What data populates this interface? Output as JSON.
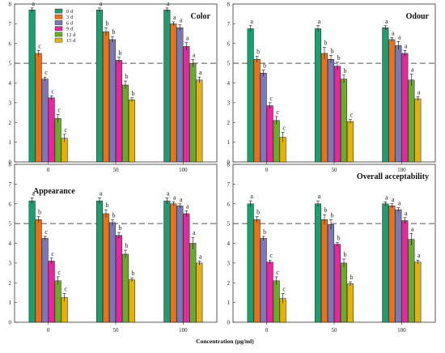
{
  "chart_data": {
    "type": "bar",
    "xlabel": "Concentration (μg/ml)",
    "categories": [
      "0",
      "50",
      "100"
    ],
    "legend": [
      "0 d",
      "3 d",
      "6 d",
      "9 d",
      "12 d",
      "15 d"
    ],
    "legend_placement": "top-left of first panel",
    "ylim": [
      0,
      8
    ],
    "yticks": [
      "0",
      "1",
      "2",
      "3",
      "4",
      "5",
      "6",
      "7",
      "8"
    ],
    "reference_line": 5,
    "colors": [
      "#1e9e70",
      "#e8721c",
      "#7a78b8",
      "#e8289a",
      "#6aab2c",
      "#e3b00c"
    ],
    "panels": [
      {
        "title": "Color",
        "title_position": "top-right",
        "values": [
          [
            7.7,
            5.5,
            4.2,
            3.25,
            2.2,
            1.2
          ],
          [
            7.7,
            6.6,
            6.2,
            5.15,
            3.9,
            3.15
          ],
          [
            7.7,
            7.0,
            6.8,
            5.85,
            5.0,
            4.15
          ]
        ],
        "errors": [
          [
            0.1,
            0.15,
            0.1,
            0.1,
            0.2,
            0.2
          ],
          [
            0.1,
            0.2,
            0.15,
            0.15,
            0.2,
            0.1
          ],
          [
            0.1,
            0.1,
            0.15,
            0.2,
            0.2,
            0.15
          ]
        ],
        "labels": [
          [
            "a",
            "c",
            "c",
            "c",
            "c",
            "c"
          ],
          [
            "a",
            "b",
            "b",
            "b",
            "b",
            "b"
          ],
          [
            "a",
            "a",
            "a",
            "a",
            "a",
            "a"
          ]
        ]
      },
      {
        "title": "Odour",
        "title_position": "top-right",
        "values": [
          [
            6.75,
            5.2,
            4.5,
            2.85,
            2.1,
            1.25
          ],
          [
            6.75,
            5.5,
            5.2,
            4.85,
            4.2,
            2.05
          ],
          [
            6.8,
            6.2,
            5.9,
            5.5,
            4.15,
            3.2
          ]
        ],
        "errors": [
          [
            0.15,
            0.15,
            0.15,
            0.15,
            0.2,
            0.25
          ],
          [
            0.15,
            0.3,
            0.2,
            0.2,
            0.2,
            0.1
          ],
          [
            0.1,
            0.1,
            0.2,
            0.15,
            0.3,
            0.1
          ]
        ],
        "labels": [
          [
            "a",
            "b",
            "b",
            "c",
            "c",
            "c"
          ],
          [
            "a",
            "b",
            "b",
            "b",
            "b",
            "c"
          ],
          [
            "a",
            "a",
            "a",
            "a",
            "a",
            "a"
          ]
        ]
      },
      {
        "title": "Appearance",
        "title_position": "middle-left",
        "values": [
          [
            6.15,
            5.2,
            4.25,
            3.1,
            2.1,
            1.25
          ],
          [
            6.15,
            5.5,
            5.05,
            4.4,
            3.45,
            2.15
          ],
          [
            6.15,
            6.0,
            5.9,
            5.5,
            4.0,
            3.0
          ]
        ],
        "errors": [
          [
            0.15,
            0.15,
            0.1,
            0.15,
            0.2,
            0.2
          ],
          [
            0.15,
            0.2,
            0.15,
            0.15,
            0.2,
            0.1
          ],
          [
            0.15,
            0.1,
            0.1,
            0.15,
            0.3,
            0.1
          ]
        ],
        "labels": [
          [
            "a",
            "b",
            "c",
            "c",
            "c",
            "c"
          ],
          [
            "a",
            "b",
            "b",
            "b",
            "b",
            "b"
          ],
          [
            "a",
            "a",
            "a",
            "a",
            "a",
            "a"
          ]
        ]
      },
      {
        "title": "Overall acceptability",
        "title_position": "top-right",
        "values": [
          [
            6.0,
            5.2,
            4.25,
            3.05,
            2.1,
            1.2
          ],
          [
            6.0,
            5.2,
            4.95,
            3.95,
            3.0,
            1.95
          ],
          [
            6.0,
            5.9,
            5.7,
            5.15,
            4.2,
            3.05
          ]
        ],
        "errors": [
          [
            0.15,
            0.15,
            0.1,
            0.1,
            0.2,
            0.25
          ],
          [
            0.15,
            0.25,
            0.25,
            0.1,
            0.2,
            0.1
          ],
          [
            0.1,
            0.1,
            0.1,
            0.15,
            0.3,
            0.1
          ]
        ],
        "labels": [
          [
            "a",
            "b",
            "b",
            "c",
            "c",
            "c"
          ],
          [
            "a",
            "b",
            "b",
            "b",
            "b",
            "b"
          ],
          [
            "a",
            "a",
            "a",
            "a",
            "a",
            "a"
          ]
        ]
      }
    ]
  }
}
